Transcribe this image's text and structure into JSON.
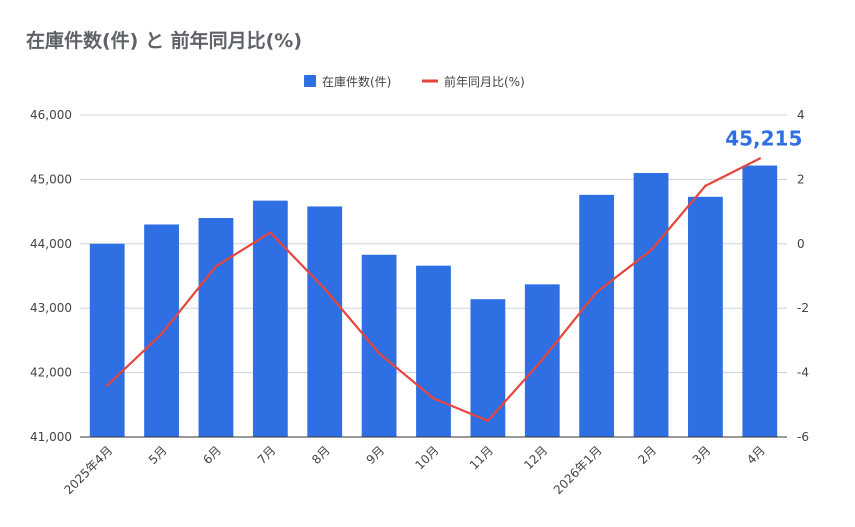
{
  "chart_data": {
    "type": "bar",
    "title": "在庫件数(件) と 前年同月比(%)",
    "categories": [
      "2025年4月",
      "5月",
      "6月",
      "7月",
      "8月",
      "9月",
      "10月",
      "11月",
      "12月",
      "2026年1月",
      "2月",
      "3月",
      "4月"
    ],
    "series": [
      {
        "name": "在庫件数(件)",
        "type": "bar",
        "axis": "left",
        "color": "#2f6fe4",
        "values": [
          44000,
          44300,
          44400,
          44670,
          44580,
          43830,
          43660,
          43140,
          43370,
          44760,
          45100,
          44730,
          45215
        ]
      },
      {
        "name": "前年同月比(%)",
        "type": "line",
        "axis": "right",
        "color": "#e8453c",
        "values": [
          -4.4,
          -2.8,
          -0.7,
          0.35,
          -1.4,
          -3.4,
          -4.8,
          -5.5,
          -3.6,
          -1.5,
          -0.2,
          1.8,
          2.65
        ]
      }
    ],
    "y_left": {
      "min": 41000,
      "max": 46000,
      "ticks": [
        "41,000",
        "42,000",
        "43,000",
        "44,000",
        "45,000",
        "46,000"
      ]
    },
    "y_right": {
      "min": -6,
      "max": 4,
      "ticks": [
        "-6",
        "-4",
        "-2",
        "0",
        "2",
        "4"
      ]
    },
    "annotation": {
      "text": "45,215",
      "category": "4月",
      "color": "#2f6fe4"
    },
    "legend": {
      "position": "top",
      "bar_label": "在庫件数(件)",
      "line_label": "前年同月比(%)"
    },
    "grid": true
  }
}
